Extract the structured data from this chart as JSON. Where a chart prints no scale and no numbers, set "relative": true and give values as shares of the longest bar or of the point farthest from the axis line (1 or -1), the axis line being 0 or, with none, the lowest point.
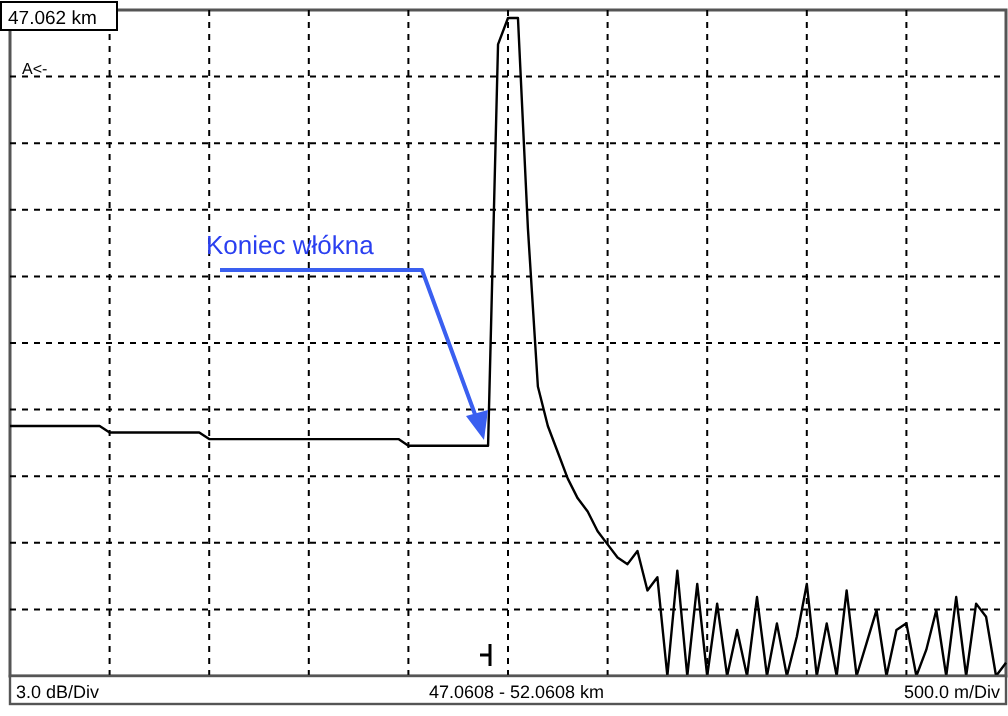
{
  "chart_data": {
    "type": "line",
    "relative": true,
    "color": "#000000",
    "xlabel": "47.0608 - 52.0608 km",
    "grid": true,
    "marker": "none",
    "line_style": "solid",
    "annotations": [
      "47.062 km",
      "A<-",
      "500.0 m/Div",
      "Koniec włókna",
      "3.0 dB/Div"
    ],
    "categories": [
      null,
      null,
      null,
      null,
      null,
      null,
      null,
      null,
      null,
      null,
      null,
      null,
      null,
      null,
      null,
      null,
      null,
      null,
      null,
      null,
      null,
      null,
      null,
      null,
      null,
      null,
      null,
      null,
      null,
      null,
      null,
      null,
      null,
      null,
      null,
      null,
      null,
      null,
      null,
      null,
      null,
      null,
      null,
      null,
      null,
      null,
      null,
      null,
      null,
      null,
      null,
      null,
      null,
      null,
      null,
      null,
      null,
      null,
      null,
      null,
      null,
      null,
      null,
      null,
      null,
      null,
      null,
      null,
      null,
      null,
      null,
      null,
      null,
      null,
      null,
      null,
      null,
      null,
      null,
      null,
      null,
      null,
      null,
      null,
      null,
      null,
      null,
      null,
      null,
      null,
      null,
      null,
      null,
      null,
      null,
      null,
      null,
      null,
      null,
      null,
      null
    ],
    "values": [
      0.38,
      0.38,
      0.38,
      0.38,
      0.38,
      0.38,
      0.38,
      0.38,
      0.38,
      0.38,
      0.37,
      0.37,
      0.37,
      0.37,
      0.37,
      0.37,
      0.37,
      0.37,
      0.37,
      0.37,
      0.36,
      0.36,
      0.36,
      0.36,
      0.36,
      0.36,
      0.36,
      0.36,
      0.36,
      0.36,
      0.36,
      0.36,
      0.36,
      0.36,
      0.36,
      0.36,
      0.36,
      0.36,
      0.36,
      0.36,
      0.35,
      0.35,
      0.35,
      0.35,
      0.35,
      0.35,
      0.35,
      0.35,
      0.35,
      0.96,
      1,
      1,
      0.68,
      0.44,
      0.38,
      0.34,
      0.3,
      0.27,
      0.25,
      0.22,
      0.2,
      0.18,
      0.17,
      0.19,
      0.13,
      0.15,
      0,
      0.16,
      0,
      0.14,
      0,
      0.11,
      0,
      0.07,
      0,
      0.12,
      0,
      0.08,
      0,
      0.06,
      0.14,
      0,
      0.08,
      0,
      0.13,
      0,
      0.05,
      0.1,
      0,
      0.07,
      0.08,
      0,
      0.04,
      0.1,
      0,
      0.12,
      0,
      0.11,
      0.09,
      0,
      0.02
    ]
  }
}
